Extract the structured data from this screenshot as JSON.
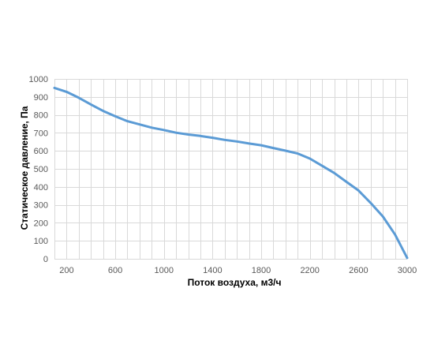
{
  "chart_data": {
    "type": "line",
    "title": "",
    "xlabel": "Поток воздуха, м3/ч",
    "ylabel": "Статическое давление, Па",
    "xlim": [
      100,
      3000
    ],
    "ylim": [
      0,
      1000
    ],
    "x_major_ticks": [
      200,
      600,
      1000,
      1400,
      1800,
      2200,
      2600,
      3000
    ],
    "x_minor_step": 100,
    "y_ticks": [
      0,
      100,
      200,
      300,
      400,
      500,
      600,
      700,
      800,
      900,
      1000
    ],
    "grid": true,
    "legend": "none",
    "line_color": "#5b9bd5",
    "grid_color": "#d9d9d9",
    "series": [
      {
        "x": [
          100,
          200,
          300,
          400,
          500,
          600,
          700,
          800,
          900,
          1000,
          1100,
          1200,
          1300,
          1400,
          1500,
          1600,
          1700,
          1800,
          1900,
          2000,
          2100,
          2200,
          2300,
          2400,
          2500,
          2600,
          2700,
          2800,
          2900,
          3000
        ],
        "y": [
          950,
          928,
          895,
          858,
          822,
          792,
          765,
          747,
          729,
          716,
          701,
          691,
          683,
          673,
          661,
          652,
          641,
          631,
          616,
          601,
          585,
          557,
          517,
          477,
          428,
          380,
          310,
          235,
          135,
          5
        ]
      }
    ]
  }
}
